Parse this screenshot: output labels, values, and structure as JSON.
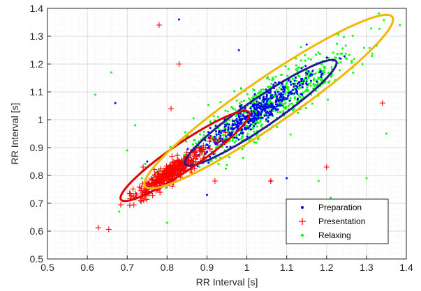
{
  "chart_data": {
    "type": "scatter",
    "title": "",
    "xlabel": "RR Interval [s]",
    "ylabel": "RR Interval [s]",
    "xlim": [
      0.5,
      1.4
    ],
    "ylim": [
      0.5,
      1.4
    ],
    "grid": true,
    "minor_grid": true,
    "legend_position": "bottom-right",
    "x_ticks": [
      "0.5",
      "0.6",
      "0.7",
      "0.8",
      "0.9",
      "1",
      "1.1",
      "1.2",
      "1.3",
      "1.4"
    ],
    "y_ticks": [
      "0.5",
      "0.6",
      "0.7",
      "0.8",
      "0.9",
      "1",
      "1.1",
      "1.2",
      "1.3",
      "1.4"
    ],
    "series": [
      {
        "name": "Preparation",
        "marker": "dot",
        "color": "#0000ff",
        "cluster": {
          "center": [
            1.03,
            1.03
          ],
          "spread_along": 0.1,
          "spread_across": 0.018,
          "n": 480
        },
        "outliers": [
          [
            0.67,
            1.06
          ],
          [
            0.83,
            1.36
          ],
          [
            0.9,
            0.73
          ],
          [
            0.98,
            1.25
          ],
          [
            1.1,
            0.79
          ],
          [
            1.15,
            1.27
          ],
          [
            0.75,
            0.85
          ],
          [
            1.06,
            0.78
          ]
        ],
        "ellipse": {
          "center": [
            1.035,
            1.025
          ],
          "semi_major": 0.265,
          "semi_minor": 0.045,
          "angle_deg": 45,
          "color": "#1f1f8f"
        }
      },
      {
        "name": "Presentation",
        "marker": "plus",
        "color": "#ff0000",
        "cluster": {
          "center": [
            0.81,
            0.81
          ],
          "spread_along": 0.065,
          "spread_across": 0.012,
          "n": 360
        },
        "outliers": [
          [
            0.78,
            1.34
          ],
          [
            0.83,
            1.2
          ],
          [
            0.81,
            1.04
          ],
          [
            1.2,
            0.83
          ],
          [
            1.34,
            1.06
          ],
          [
            1.06,
            0.78
          ],
          [
            0.74,
            0.83
          ],
          [
            0.92,
            0.78
          ]
        ],
        "ellipse": {
          "center": [
            0.845,
            0.87
          ],
          "semi_major": 0.225,
          "semi_minor": 0.042,
          "angle_deg": 45,
          "color": "#e00000"
        }
      },
      {
        "name": "Relaxing",
        "marker": "dot",
        "color": "#00ff00",
        "cluster": {
          "center": [
            1.05,
            1.05
          ],
          "spread_along": 0.15,
          "spread_across": 0.035,
          "n": 750
        },
        "outliers": [
          [
            0.62,
            1.09
          ],
          [
            0.66,
            1.17
          ],
          [
            0.68,
            0.67
          ],
          [
            0.7,
            0.89
          ],
          [
            0.8,
            0.63
          ],
          [
            1.3,
            0.79
          ],
          [
            1.21,
            0.72
          ],
          [
            1.18,
            0.78
          ],
          [
            1.35,
            0.95
          ],
          [
            0.72,
            0.98
          ]
        ],
        "ellipse": {
          "center": [
            1.055,
            1.065
          ],
          "semi_major": 0.435,
          "semi_minor": 0.072,
          "angle_deg": 45,
          "color": "#f2b705"
        }
      }
    ]
  }
}
